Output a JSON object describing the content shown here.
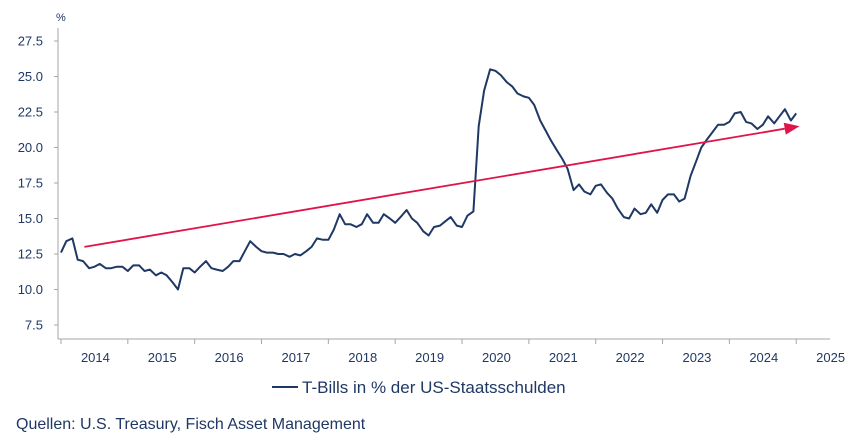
{
  "chart_data": {
    "type": "line",
    "ylabel": "%",
    "ylim": [
      7.5,
      27.5
    ],
    "yticks": [
      "7.5",
      "10.0",
      "12.5",
      "15.0",
      "17.5",
      "20.0",
      "22.5",
      "25.0",
      "27.5"
    ],
    "xlim": [
      2013.5,
      2025.2
    ],
    "xticks": [
      "2014",
      "2015",
      "2016",
      "2017",
      "2018",
      "2019",
      "2020",
      "2021",
      "2022",
      "2023",
      "2024",
      "2025"
    ],
    "grid": false,
    "legend_position": "bottom-center",
    "series": [
      {
        "name": "T-Bills in % der US-Staatsschulden",
        "color": "#1f3864",
        "points": [
          [
            2013.5,
            12.6
          ],
          [
            2013.58,
            13.4
          ],
          [
            2013.67,
            13.6
          ],
          [
            2013.75,
            12.1
          ],
          [
            2013.83,
            12.0
          ],
          [
            2013.92,
            11.5
          ],
          [
            2014.0,
            11.6
          ],
          [
            2014.08,
            11.8
          ],
          [
            2014.17,
            11.5
          ],
          [
            2014.25,
            11.5
          ],
          [
            2014.33,
            11.6
          ],
          [
            2014.42,
            11.6
          ],
          [
            2014.5,
            11.3
          ],
          [
            2014.58,
            11.7
          ],
          [
            2014.67,
            11.7
          ],
          [
            2014.75,
            11.3
          ],
          [
            2014.83,
            11.4
          ],
          [
            2014.92,
            11.0
          ],
          [
            2015.0,
            11.2
          ],
          [
            2015.08,
            11.0
          ],
          [
            2015.17,
            10.5
          ],
          [
            2015.25,
            10.0
          ],
          [
            2015.33,
            11.5
          ],
          [
            2015.42,
            11.5
          ],
          [
            2015.5,
            11.2
          ],
          [
            2015.58,
            11.6
          ],
          [
            2015.67,
            12.0
          ],
          [
            2015.75,
            11.5
          ],
          [
            2015.83,
            11.4
          ],
          [
            2015.92,
            11.3
          ],
          [
            2016.0,
            11.6
          ],
          [
            2016.08,
            12.0
          ],
          [
            2016.17,
            12.0
          ],
          [
            2016.25,
            12.7
          ],
          [
            2016.33,
            13.4
          ],
          [
            2016.42,
            13.0
          ],
          [
            2016.5,
            12.7
          ],
          [
            2016.58,
            12.6
          ],
          [
            2016.67,
            12.6
          ],
          [
            2016.75,
            12.5
          ],
          [
            2016.83,
            12.5
          ],
          [
            2016.92,
            12.3
          ],
          [
            2017.0,
            12.5
          ],
          [
            2017.08,
            12.4
          ],
          [
            2017.17,
            12.7
          ],
          [
            2017.25,
            13.0
          ],
          [
            2017.33,
            13.6
          ],
          [
            2017.42,
            13.5
          ],
          [
            2017.5,
            13.5
          ],
          [
            2017.58,
            14.2
          ],
          [
            2017.67,
            15.3
          ],
          [
            2017.75,
            14.6
          ],
          [
            2017.83,
            14.6
          ],
          [
            2017.92,
            14.4
          ],
          [
            2018.0,
            14.6
          ],
          [
            2018.08,
            15.3
          ],
          [
            2018.17,
            14.7
          ],
          [
            2018.25,
            14.7
          ],
          [
            2018.33,
            15.3
          ],
          [
            2018.42,
            15.0
          ],
          [
            2018.5,
            14.7
          ],
          [
            2018.58,
            15.1
          ],
          [
            2018.67,
            15.6
          ],
          [
            2018.75,
            15.0
          ],
          [
            2018.83,
            14.7
          ],
          [
            2018.92,
            14.1
          ],
          [
            2019.0,
            13.8
          ],
          [
            2019.08,
            14.4
          ],
          [
            2019.17,
            14.5
          ],
          [
            2019.25,
            14.8
          ],
          [
            2019.33,
            15.1
          ],
          [
            2019.42,
            14.5
          ],
          [
            2019.5,
            14.4
          ],
          [
            2019.58,
            15.2
          ],
          [
            2019.67,
            15.5
          ],
          [
            2019.75,
            21.5
          ],
          [
            2019.83,
            24.0
          ],
          [
            2019.92,
            25.5
          ],
          [
            2020.0,
            25.4
          ],
          [
            2020.08,
            25.1
          ],
          [
            2020.17,
            24.6
          ],
          [
            2020.25,
            24.3
          ],
          [
            2020.33,
            23.8
          ],
          [
            2020.42,
            23.6
          ],
          [
            2020.5,
            23.5
          ],
          [
            2020.58,
            23.0
          ],
          [
            2020.67,
            21.9
          ],
          [
            2020.75,
            21.2
          ],
          [
            2020.83,
            20.5
          ],
          [
            2020.92,
            19.8
          ],
          [
            2021.0,
            19.2
          ],
          [
            2021.08,
            18.5
          ],
          [
            2021.17,
            17.0
          ],
          [
            2021.25,
            17.4
          ],
          [
            2021.33,
            16.9
          ],
          [
            2021.42,
            16.7
          ],
          [
            2021.5,
            17.3
          ],
          [
            2021.58,
            17.4
          ],
          [
            2021.67,
            16.8
          ],
          [
            2021.75,
            16.4
          ],
          [
            2021.83,
            15.7
          ],
          [
            2021.92,
            15.1
          ],
          [
            2022.0,
            15.0
          ],
          [
            2022.08,
            15.7
          ],
          [
            2022.17,
            15.3
          ],
          [
            2022.25,
            15.4
          ],
          [
            2022.33,
            16.0
          ],
          [
            2022.42,
            15.4
          ],
          [
            2022.5,
            16.3
          ],
          [
            2022.58,
            16.7
          ],
          [
            2022.67,
            16.7
          ],
          [
            2022.75,
            16.2
          ],
          [
            2022.83,
            16.4
          ],
          [
            2022.92,
            18.0
          ],
          [
            2023.0,
            19.0
          ],
          [
            2023.08,
            20.0
          ],
          [
            2023.17,
            20.6
          ],
          [
            2023.25,
            21.1
          ],
          [
            2023.33,
            21.6
          ],
          [
            2023.42,
            21.6
          ],
          [
            2023.5,
            21.8
          ],
          [
            2023.58,
            22.4
          ],
          [
            2023.67,
            22.5
          ],
          [
            2023.75,
            21.8
          ],
          [
            2023.83,
            21.7
          ],
          [
            2023.92,
            21.3
          ],
          [
            2024.0,
            21.6
          ],
          [
            2024.08,
            22.2
          ],
          [
            2024.17,
            21.7
          ],
          [
            2024.25,
            22.2
          ],
          [
            2024.33,
            22.7
          ],
          [
            2024.42,
            21.9
          ],
          [
            2024.5,
            22.4
          ]
        ]
      }
    ],
    "annotations": [
      {
        "type": "trend-arrow",
        "color": "#e0134b",
        "from": [
          2013.85,
          13.0
        ],
        "to": [
          2024.55,
          21.5
        ]
      }
    ]
  },
  "source_note": "Quellen: U.S. Treasury, Fisch Asset Management"
}
